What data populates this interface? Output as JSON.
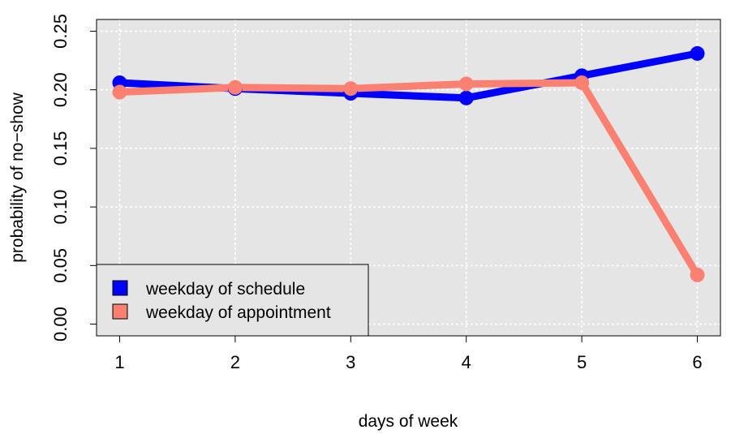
{
  "chart_data": {
    "type": "line",
    "x": [
      1,
      2,
      3,
      4,
      5,
      6
    ],
    "series": [
      {
        "name": "weekday of schedule",
        "values": [
          0.206,
          0.201,
          0.197,
          0.193,
          0.212,
          0.231
        ],
        "color": "#0000ff"
      },
      {
        "name": "weekday of appointment",
        "values": [
          0.198,
          0.202,
          0.201,
          0.205,
          0.206,
          0.042
        ],
        "color": "#fa8072"
      }
    ],
    "xlabel": "days of week",
    "ylabel": "probability of no−show",
    "xticks": [
      "1",
      "2",
      "3",
      "4",
      "5",
      "6"
    ],
    "yticks": [
      "0.00",
      "0.05",
      "0.10",
      "0.15",
      "0.20",
      "0.25"
    ],
    "ytick_values": [
      0,
      0.05,
      0.1,
      0.15,
      0.2,
      0.25
    ],
    "xlim": [
      0.8,
      6.2
    ],
    "ylim": [
      -0.01,
      0.26
    ],
    "grid": true,
    "legend_position": "bottom-left",
    "plot_background": "#e5e5e5",
    "grid_color": "#ffffff"
  }
}
